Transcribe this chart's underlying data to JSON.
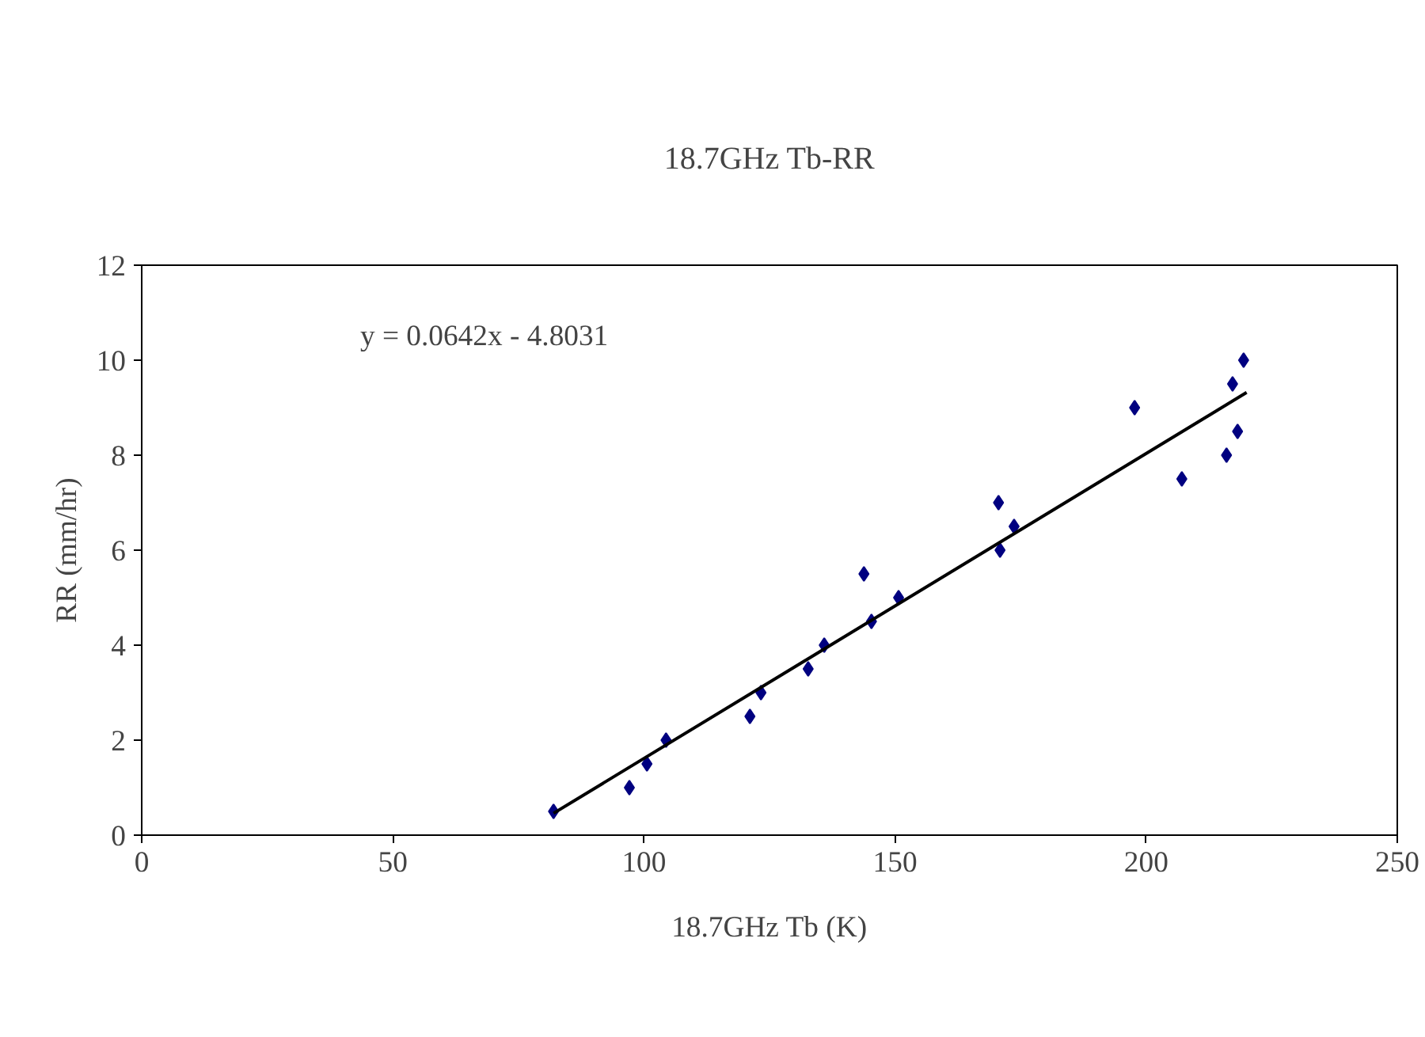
{
  "chart_data": {
    "type": "scatter",
    "title": "18.7GHz Tb-RR",
    "xlabel": "18.7GHz Tb (K)",
    "ylabel": "RR (mm/hr)",
    "annotations": [
      "y = 0.0642x - 4.8031"
    ],
    "xlim": [
      0,
      250
    ],
    "xticks": [
      0,
      50,
      100,
      150,
      200,
      250
    ],
    "ylim": [
      0,
      12
    ],
    "yticks": [
      0,
      2,
      4,
      6,
      8,
      10,
      12
    ],
    "grid": false,
    "marker": "diamond",
    "series": [
      {
        "type": "scatter",
        "color": "#000080",
        "x": [
          82.0,
          97.1,
          100.6,
          104.4,
          121.1,
          123.3,
          132.7,
          135.9,
          143.8,
          145.3,
          150.7,
          170.6,
          170.9,
          173.7,
          197.7,
          207.1,
          216.0,
          217.2,
          218.2,
          219.4
        ],
        "values": [
          0.5,
          1.0,
          1.5,
          2.0,
          2.5,
          3.0,
          3.5,
          4.0,
          5.5,
          4.5,
          5.0,
          7.0,
          6.0,
          6.5,
          9.0,
          7.5,
          8.0,
          9.5,
          8.5,
          10.0
        ]
      },
      {
        "type": "line",
        "color": "#000000",
        "line_style": "solid",
        "marker": "none",
        "x": [
          82,
          220
        ],
        "values": [
          0.46,
          9.32
        ]
      }
    ]
  }
}
